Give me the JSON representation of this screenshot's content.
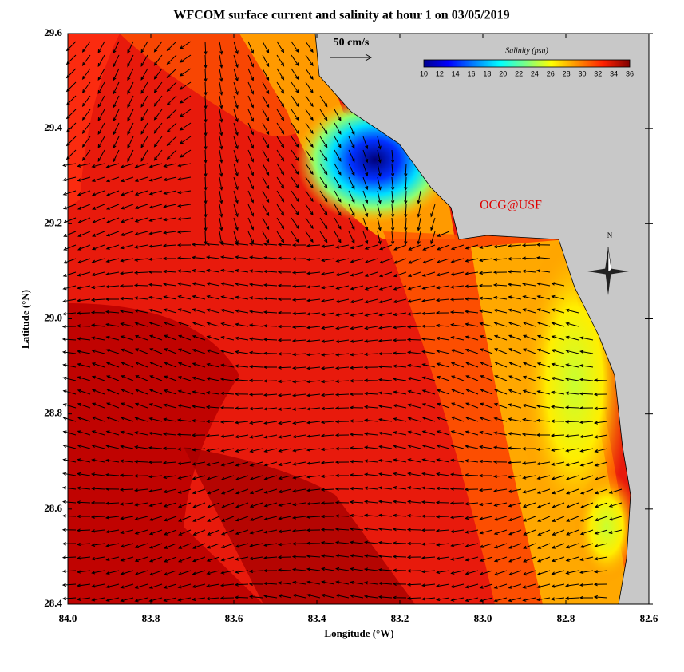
{
  "title": "WFCOM surface current and salinity at hour 1 on 03/05/2019",
  "x_axis": {
    "label": "Longitude (°W)",
    "ticks": [
      "84.0",
      "83.8",
      "83.6",
      "83.4",
      "83.2",
      "83.0",
      "82.8",
      "82.6"
    ]
  },
  "y_axis": {
    "label": "Latitude (°N)",
    "ticks": [
      "29.6",
      "29.4",
      "29.2",
      "29.0",
      "28.8",
      "28.6",
      "28.4"
    ]
  },
  "colorbar": {
    "title": "Salinity (psu)",
    "ticks": [
      "10",
      "12",
      "14",
      "16",
      "18",
      "20",
      "22",
      "24",
      "26",
      "28",
      "30",
      "32",
      "34",
      "36"
    ]
  },
  "scale_arrow_label": "50 cm/s",
  "credit": "OCG@USF",
  "compass": "N"
}
